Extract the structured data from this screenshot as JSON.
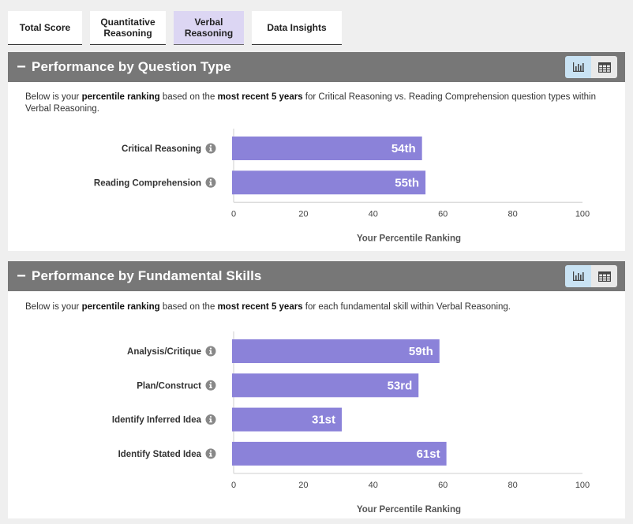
{
  "tabs": [
    {
      "label": "Total Score",
      "active": false
    },
    {
      "label": "Quantitative Reasoning",
      "active": false
    },
    {
      "label": "Verbal Reasoning",
      "active": true
    },
    {
      "label": "Data Insights",
      "active": false
    }
  ],
  "panels": [
    {
      "collapse_symbol": "−",
      "title": "Performance by Question Type",
      "description": {
        "p1": "Below is your ",
        "b1": "percentile ranking",
        "p2": " based on the ",
        "b2": "most recent 5 years",
        "p3": " for Critical Reasoning vs. Reading Comprehension question types within Verbal Reasoning."
      },
      "view_icons": [
        "bar-chart-icon",
        "table-icon"
      ]
    },
    {
      "collapse_symbol": "−",
      "title": "Performance by Fundamental Skills",
      "description": {
        "p1": "Below is your ",
        "b1": "percentile ranking",
        "p2": " based on the ",
        "b2": "most recent 5 years",
        "p3": " for each fundamental skill within Verbal Reasoning."
      },
      "view_icons": [
        "bar-chart-icon",
        "table-icon"
      ]
    }
  ],
  "colors": {
    "bar": "#8b82d9",
    "header": "#777777",
    "active_tab": "#dcd6f3",
    "chart_toggle_active": "#c9e3f4"
  },
  "chart_data": [
    {
      "type": "bar",
      "orientation": "horizontal",
      "categories": [
        "Critical Reasoning",
        "Reading Comprehension"
      ],
      "values": [
        54,
        55
      ],
      "value_labels": [
        "54th",
        "55th"
      ],
      "xlabel": "Your Percentile Ranking",
      "xlim": [
        0,
        100
      ],
      "xticks": [
        "0",
        "20",
        "40",
        "60",
        "80",
        "100"
      ],
      "info_icon": "info-icon"
    },
    {
      "type": "bar",
      "orientation": "horizontal",
      "categories": [
        "Analysis/Critique",
        "Plan/Construct",
        "Identify Inferred Idea",
        "Identify Stated Idea"
      ],
      "values": [
        59,
        53,
        31,
        61
      ],
      "value_labels": [
        "59th",
        "53rd",
        "31st",
        "61st"
      ],
      "xlabel": "Your Percentile Ranking",
      "xlim": [
        0,
        100
      ],
      "xticks": [
        "0",
        "20",
        "40",
        "60",
        "80",
        "100"
      ],
      "info_icon": "info-icon"
    }
  ]
}
